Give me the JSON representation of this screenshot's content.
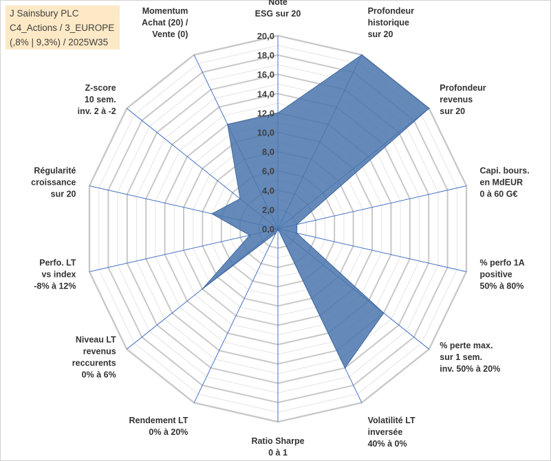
{
  "header": {
    "lines": [
      "J Sainsbury PLC",
      "C4_Actions / 3_EUROPE",
      "(,8% | 9,3%) / 2025W35"
    ]
  },
  "chart_data": {
    "type": "radar",
    "rmin": 0,
    "rmax": 20,
    "tick_labels": [
      "0,0",
      "2,0",
      "4,0",
      "6,0",
      "8,0",
      "10,0",
      "12,0",
      "14,0",
      "16,0",
      "18,0",
      "20,0"
    ],
    "axes": [
      {
        "label": [
          "Note",
          "ESG sur 20"
        ],
        "value": 12.0
      },
      {
        "label": [
          "Profondeur",
          "historique",
          "sur 20"
        ],
        "value": 20.0
      },
      {
        "label": [
          "Profondeur",
          "revenus",
          "sur 20"
        ],
        "value": 20.0
      },
      {
        "label": [
          "Capi. bours.",
          "en MdEUR",
          "0 à 60 G€"
        ],
        "value": 2.0
      },
      {
        "label": [
          "% perfo 1A",
          "positive",
          "50% à 80%"
        ],
        "value": 2.0
      },
      {
        "label": [
          "% perte max.",
          "sur 1 sem.",
          "inv. 50% à 20%"
        ],
        "value": 14.0
      },
      {
        "label": [
          "Volatilité LT",
          "inversée",
          "40% à 0%"
        ],
        "value": 16.0
      },
      {
        "label": [
          "Ratio Sharpe",
          "0 à 1"
        ],
        "value": 0.0
      },
      {
        "label": [
          "Rendement LT",
          "0% à 20%"
        ],
        "value": 0.5
      },
      {
        "label": [
          "Niveau LT",
          "revenus",
          "reccurents",
          "0% à 6%"
        ],
        "value": 10.0
      },
      {
        "label": [
          "Perfo. LT",
          "vs index",
          "-8% à 12%"
        ],
        "value": 3.0
      },
      {
        "label": [
          "Régularité",
          "croissance",
          "sur 20"
        ],
        "value": 7.0
      },
      {
        "label": [
          "Z-score",
          "10 sem.",
          "inv. 2 à -2"
        ],
        "value": 5.0
      },
      {
        "label": [
          "Momentum",
          "Achat (20) /",
          "Vente (0)"
        ],
        "value": 12.0
      }
    ],
    "fill_color": "#4a75ad",
    "stroke_color": "#3f67a0",
    "grid_color": "#c8c8c8",
    "spoke_color": "#4472c4",
    "legend": "none"
  }
}
